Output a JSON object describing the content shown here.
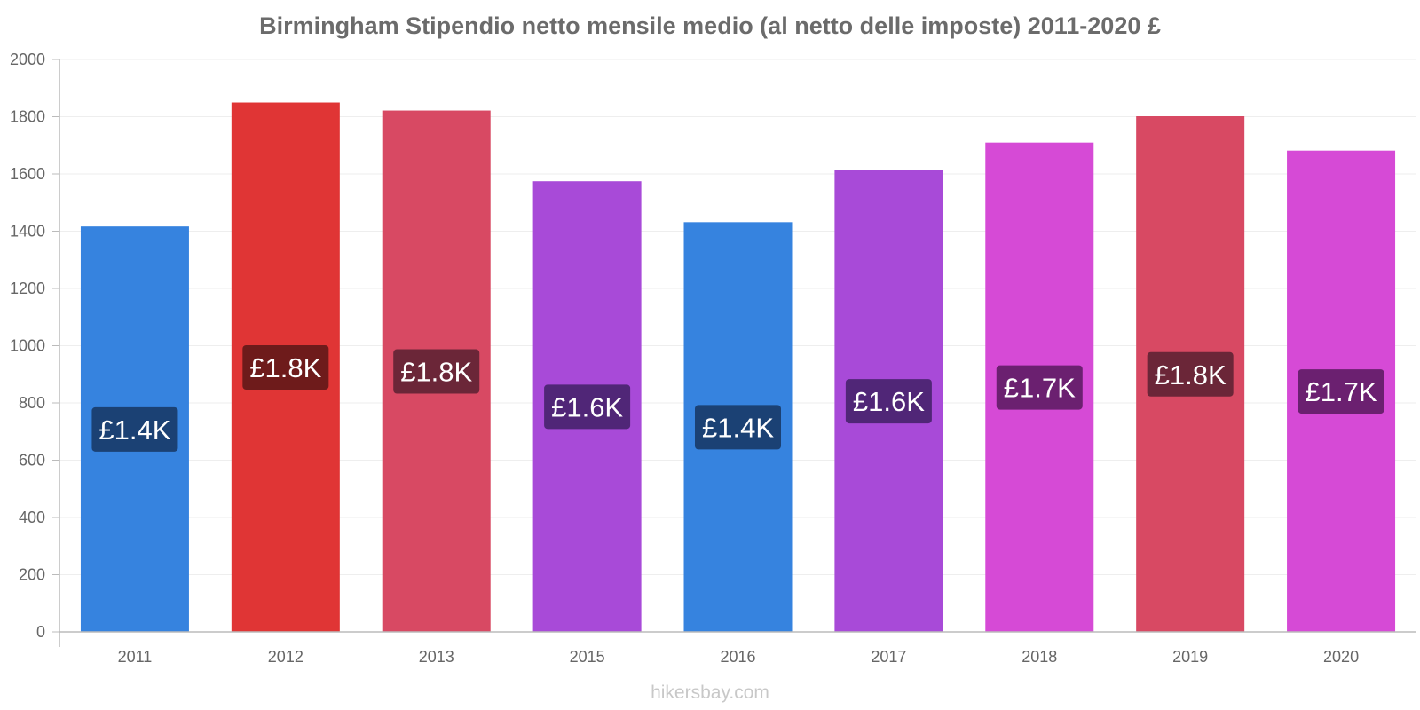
{
  "chart_data": {
    "type": "bar",
    "title": "Birmingham Stipendio netto mensile medio (al netto delle imposte) 2011-2020 £",
    "categories": [
      "2011",
      "2012",
      "2013",
      "2015",
      "2016",
      "2017",
      "2018",
      "2019",
      "2020"
    ],
    "values": [
      1415,
      1848,
      1820,
      1573,
      1430,
      1612,
      1708,
      1800,
      1680
    ],
    "data_labels": [
      "£1.4K",
      "£1.8K",
      "£1.8K",
      "£1.6K",
      "£1.4K",
      "£1.6K",
      "£1.7K",
      "£1.8K",
      "£1.7K"
    ],
    "bar_colors": [
      "#3683df",
      "#e03535",
      "#d84963",
      "#a84ad8",
      "#3683df",
      "#a84ad8",
      "#d64ad6",
      "#d84963",
      "#d64ad6"
    ],
    "label_bg_colors": [
      "#1b4174",
      "#6e1b1b",
      "#6b2638",
      "#502677",
      "#1b4174",
      "#502677",
      "#6b2070",
      "#6b2638",
      "#6b2070"
    ],
    "ylim": [
      0,
      2000
    ],
    "yticks": [
      "0",
      "200",
      "400",
      "600",
      "800",
      "1000",
      "1200",
      "1400",
      "1600",
      "1800",
      "2000"
    ],
    "xlabel": "",
    "ylabel": "",
    "grid": true,
    "legend": "none"
  },
  "footer": {
    "watermark": "hikersbay.com"
  }
}
